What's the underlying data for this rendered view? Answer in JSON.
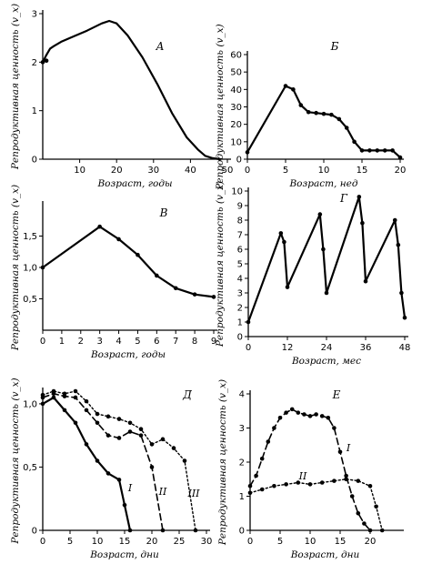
{
  "chart_data": [
    {
      "panel": "А",
      "type": "line",
      "xlabel": "Возраст, годы",
      "ylabel": "Репродуктивная ценность (v_x)",
      "xlim": [
        0,
        50
      ],
      "ylim": [
        0,
        3
      ],
      "xticks": [
        10,
        20,
        30,
        40,
        50
      ],
      "yticks": [
        0,
        1,
        2,
        3
      ],
      "series": [
        {
          "style": "solid",
          "markers": "none",
          "x": [
            0,
            1,
            2,
            3,
            5,
            8,
            12,
            16,
            18,
            20,
            23,
            27,
            31,
            35,
            39,
            42,
            44,
            46,
            48
          ],
          "y": [
            2.0,
            2.15,
            2.28,
            2.33,
            2.42,
            2.52,
            2.65,
            2.8,
            2.85,
            2.8,
            2.55,
            2.1,
            1.55,
            0.95,
            0.45,
            0.2,
            0.07,
            0.02,
            0.0
          ],
          "marker_x": [
            0,
            1
          ],
          "marker_y": [
            2.0,
            2.03
          ]
        }
      ]
    },
    {
      "panel": "Б",
      "type": "line",
      "xlabel": "Возраст, нед",
      "ylabel": "Репродуктивная ценность (v_x)",
      "xlim": [
        0,
        20
      ],
      "ylim": [
        0,
        60
      ],
      "xticks": [
        0,
        5,
        10,
        15,
        20
      ],
      "yticks": [
        0,
        10,
        20,
        30,
        40,
        50,
        60
      ],
      "series": [
        {
          "style": "solid",
          "markers": "dots",
          "x": [
            0,
            5,
            6,
            7,
            8,
            9,
            10,
            11,
            12,
            13,
            14,
            15,
            16,
            17,
            18,
            19,
            20
          ],
          "y": [
            4,
            42,
            40,
            31,
            27,
            26.5,
            26,
            25.5,
            23,
            18,
            10,
            5,
            5,
            5,
            5,
            5,
            1
          ]
        }
      ]
    },
    {
      "panel": "В",
      "type": "line",
      "xlabel": "Возраст, годы",
      "ylabel": "Репродуктивная ценность (v_x)",
      "xlim": [
        0,
        9
      ],
      "ylim": [
        0,
        2
      ],
      "xticks": [
        0,
        1,
        2,
        3,
        4,
        5,
        6,
        7,
        8,
        9
      ],
      "yticks": [
        0.5,
        1.0,
        1.5
      ],
      "ytick_labels": [
        "0,5",
        "1,0",
        "1,5"
      ],
      "series": [
        {
          "style": "solid",
          "markers": "dots",
          "x": [
            0,
            3,
            4,
            5,
            6,
            7,
            8,
            9
          ],
          "y": [
            1.0,
            1.65,
            1.45,
            1.2,
            0.87,
            0.67,
            0.57,
            0.53
          ]
        }
      ]
    },
    {
      "panel": "Г",
      "type": "line",
      "xlabel": "Возраст, мес",
      "ylabel": "Репродуктивная ценность (v_x)",
      "xlim": [
        0,
        48
      ],
      "ylim": [
        0,
        10
      ],
      "xticks": [
        0,
        12,
        24,
        36,
        48
      ],
      "yticks": [
        0,
        1,
        2,
        3,
        4,
        5,
        6,
        7,
        8,
        9,
        10
      ],
      "series": [
        {
          "style": "solid",
          "markers": "dots",
          "x": [
            0,
            10,
            11,
            12,
            22,
            23,
            24,
            34,
            35,
            36,
            45,
            46,
            47,
            48
          ],
          "y": [
            1.0,
            7.1,
            6.5,
            3.4,
            8.4,
            6.0,
            3.0,
            9.6,
            7.8,
            3.8,
            8.0,
            6.3,
            3.0,
            1.3
          ]
        }
      ]
    },
    {
      "panel": "Д",
      "type": "line",
      "xlabel": "Возраст, дни",
      "ylabel": "Репродуктивная ценность (v_x)",
      "xlim": [
        0,
        30
      ],
      "ylim": [
        0,
        1.1
      ],
      "xticks": [
        0,
        5,
        10,
        15,
        20,
        25,
        30
      ],
      "yticks": [
        0,
        0.5,
        1.0
      ],
      "ytick_labels": [
        "0",
        "0,5",
        "1,0"
      ],
      "series": [
        {
          "name": "I",
          "style": "solid",
          "markers": "dots",
          "x": [
            0,
            2,
            4,
            6,
            8,
            10,
            12,
            14,
            15,
            16
          ],
          "y": [
            1.0,
            1.05,
            0.95,
            0.85,
            0.68,
            0.55,
            0.45,
            0.4,
            0.2,
            0.0
          ]
        },
        {
          "name": "II",
          "style": "dashed",
          "markers": "dots",
          "x": [
            0,
            2,
            4,
            6,
            8,
            10,
            12,
            14,
            16,
            18,
            20,
            22
          ],
          "y": [
            1.05,
            1.08,
            1.06,
            1.05,
            0.95,
            0.85,
            0.75,
            0.73,
            0.78,
            0.75,
            0.5,
            0.0
          ]
        },
        {
          "name": "III",
          "style": "dotted",
          "markers": "dots",
          "x": [
            0,
            2,
            4,
            6,
            8,
            10,
            12,
            14,
            16,
            18,
            20,
            22,
            24,
            26,
            28
          ],
          "y": [
            1.07,
            1.1,
            1.08,
            1.1,
            1.02,
            0.92,
            0.9,
            0.88,
            0.85,
            0.8,
            0.68,
            0.72,
            0.65,
            0.55,
            0.0
          ]
        }
      ]
    },
    {
      "panel": "Е",
      "type": "line",
      "xlabel": "Возраст, дни",
      "ylabel": "Репродуктивная ценность (v_x)",
      "xlim": [
        0,
        25
      ],
      "ylim": [
        0,
        4
      ],
      "xticks": [
        0,
        5,
        10,
        15,
        20
      ],
      "yticks": [
        0,
        1,
        2,
        3,
        4
      ],
      "series": [
        {
          "name": "I",
          "style": "dashed",
          "markers": "dots",
          "x": [
            0,
            1,
            2,
            3,
            4,
            5,
            6,
            7,
            8,
            9,
            10,
            11,
            12,
            13,
            14,
            15,
            16,
            17,
            18,
            19,
            20
          ],
          "y": [
            1.3,
            1.6,
            2.1,
            2.6,
            3.0,
            3.3,
            3.45,
            3.55,
            3.45,
            3.4,
            3.35,
            3.4,
            3.35,
            3.3,
            3.0,
            2.3,
            1.6,
            1.0,
            0.5,
            0.2,
            0.0
          ]
        },
        {
          "name": "II",
          "style": "dotted",
          "markers": "dots",
          "x": [
            0,
            2,
            4,
            6,
            8,
            10,
            12,
            14,
            16,
            18,
            20,
            21,
            22
          ],
          "y": [
            1.1,
            1.2,
            1.3,
            1.35,
            1.4,
            1.35,
            1.4,
            1.45,
            1.5,
            1.45,
            1.3,
            0.7,
            0.0
          ]
        }
      ]
    }
  ]
}
